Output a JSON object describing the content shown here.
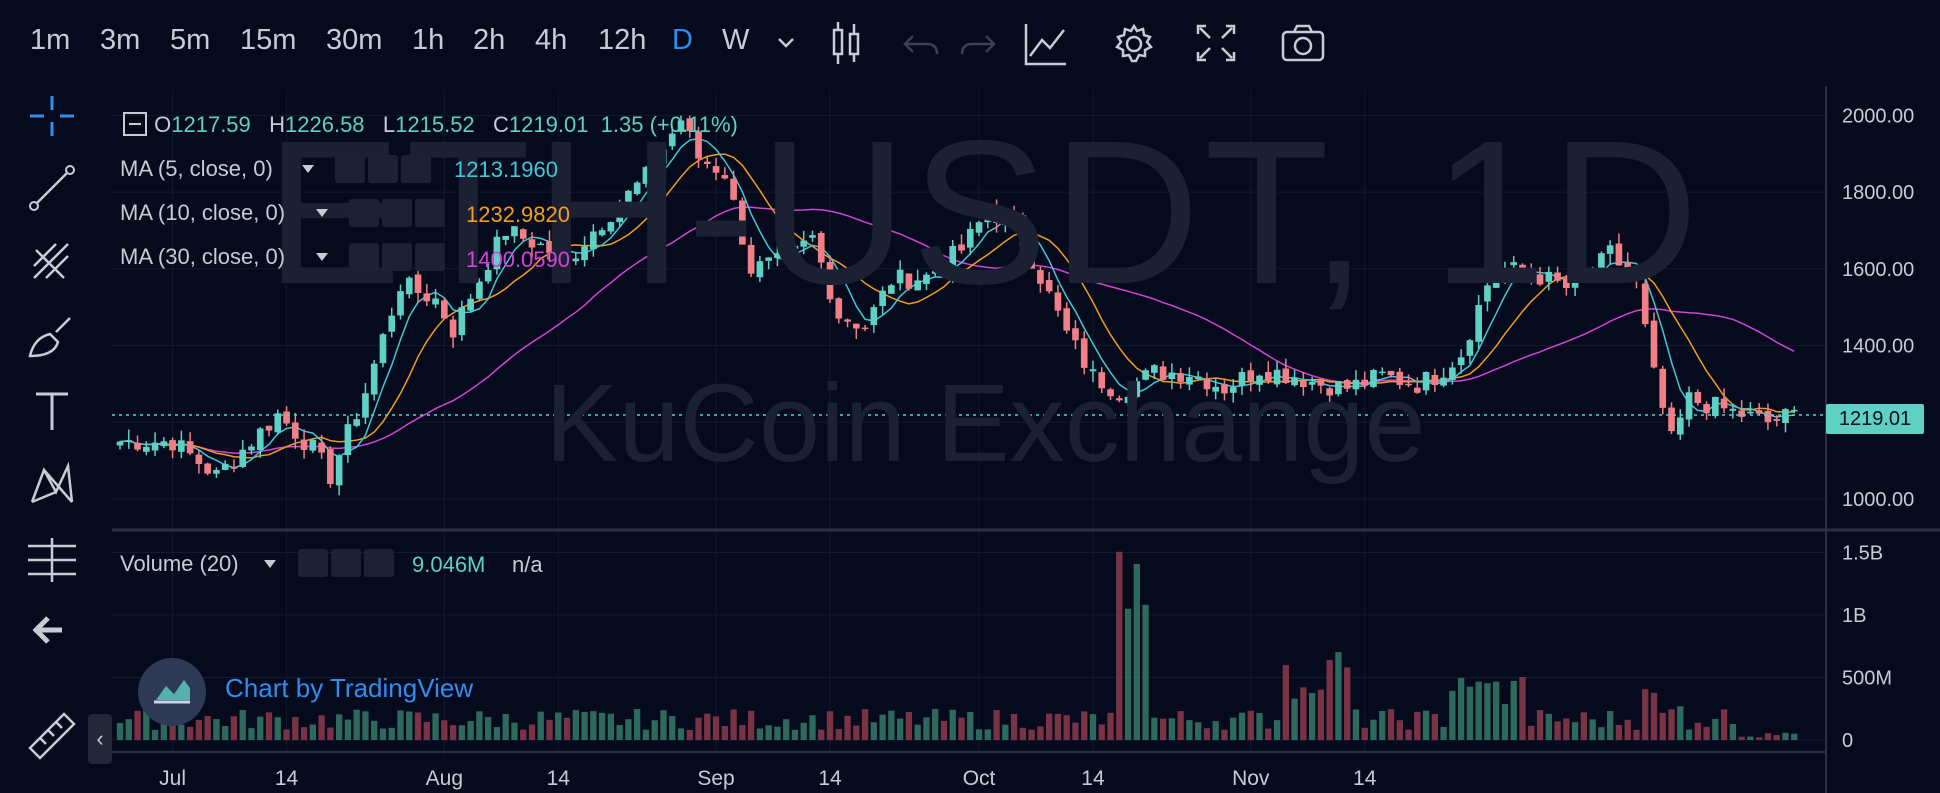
{
  "toolbar": {
    "timeframes": [
      "1m",
      "3m",
      "5m",
      "15m",
      "30m",
      "1h",
      "2h",
      "4h",
      "12h",
      "D",
      "W"
    ],
    "active_timeframe": "D"
  },
  "legend": {
    "o_label": "O",
    "o_value": "1217.59",
    "h_label": "H",
    "h_value": "1226.58",
    "l_label": "L",
    "l_value": "1215.52",
    "c_label": "C",
    "c_value": "1219.01",
    "change": "1.35 (+0.11%)"
  },
  "indicators": [
    {
      "name": "MA (5, close, 0)",
      "value": "1213.1960",
      "color": "#3fc8d8"
    },
    {
      "name": "MA (10, close, 0)",
      "value": "1232.9820",
      "color": "#f39c1f"
    },
    {
      "name": "MA (30, close, 0)",
      "value": "1400.0590",
      "color": "#d442d8"
    }
  ],
  "volume_indicator": {
    "name": "Volume (20)",
    "value": "9.046M",
    "ma": "n/a"
  },
  "watermark": {
    "symbol": "ETH-USDT, 1D",
    "exchange": "KuCoin Exchange"
  },
  "branding": {
    "text": "Chart by TradingView"
  },
  "last_price": "1219.01",
  "colors": {
    "up": "#5ed0c4",
    "down": "#f07f86",
    "bg": "#050a1c",
    "accent": "#2f8ef0"
  },
  "icons": [
    "candles-icon",
    "undo-icon",
    "redo-icon",
    "line-chart-icon",
    "gear-icon",
    "fullscreen-icon",
    "camera-icon",
    "crosshair-icon",
    "trend-line-icon",
    "pitchfork-icon",
    "brush-icon",
    "text-icon",
    "pattern-icon",
    "measure-icon",
    "back-arrow-icon",
    "ruler-icon"
  ],
  "chart_data": {
    "type": "candlestick",
    "symbol": "ETH-USDT",
    "interval": "1D",
    "price_axis": {
      "ticks": [
        "2000.00",
        "1800.00",
        "1600.00",
        "1400.00",
        "1200.00",
        "1000.00"
      ],
      "range": [
        940,
        2040
      ]
    },
    "volume_axis": {
      "ticks": [
        "1.5B",
        "1B",
        "500M",
        "0"
      ],
      "range": [
        0,
        1600000000
      ]
    },
    "x_labels": [
      "Jul",
      "14",
      "Aug",
      "14",
      "Sep",
      "14",
      "Oct",
      "14",
      "Nov",
      "14"
    ],
    "anchor_points": [
      {
        "day": 0,
        "price": 1150
      },
      {
        "day": 6,
        "price": 1150
      },
      {
        "day": 11,
        "price": 1060
      },
      {
        "day": 18,
        "price": 1220
      },
      {
        "day": 22,
        "price": 1130
      },
      {
        "day": 24,
        "price": 1060
      },
      {
        "day": 28,
        "price": 1280
      },
      {
        "day": 32,
        "price": 1560
      },
      {
        "day": 36,
        "price": 1520
      },
      {
        "day": 38,
        "price": 1440
      },
      {
        "day": 42,
        "price": 1620
      },
      {
        "day": 44,
        "price": 1700
      },
      {
        "day": 48,
        "price": 1660
      },
      {
        "day": 51,
        "price": 1620
      },
      {
        "day": 54,
        "price": 1700
      },
      {
        "day": 60,
        "price": 1840
      },
      {
        "day": 64,
        "price": 1990
      },
      {
        "day": 66,
        "price": 1890
      },
      {
        "day": 69,
        "price": 1850
      },
      {
        "day": 72,
        "price": 1600
      },
      {
        "day": 76,
        "price": 1620
      },
      {
        "day": 79,
        "price": 1680
      },
      {
        "day": 82,
        "price": 1480
      },
      {
        "day": 85,
        "price": 1450
      },
      {
        "day": 88,
        "price": 1570
      },
      {
        "day": 92,
        "price": 1580
      },
      {
        "day": 96,
        "price": 1650
      },
      {
        "day": 99,
        "price": 1750
      },
      {
        "day": 102,
        "price": 1720
      },
      {
        "day": 105,
        "price": 1580
      },
      {
        "day": 108,
        "price": 1430
      },
      {
        "day": 111,
        "price": 1320
      },
      {
        "day": 114,
        "price": 1280
      },
      {
        "day": 118,
        "price": 1330
      },
      {
        "day": 122,
        "price": 1330
      },
      {
        "day": 126,
        "price": 1290
      },
      {
        "day": 130,
        "price": 1340
      },
      {
        "day": 134,
        "price": 1320
      },
      {
        "day": 137,
        "price": 1300
      },
      {
        "day": 140,
        "price": 1290
      },
      {
        "day": 144,
        "price": 1320
      },
      {
        "day": 148,
        "price": 1300
      },
      {
        "day": 150,
        "price": 1320
      },
      {
        "day": 153,
        "price": 1380
      },
      {
        "day": 156,
        "price": 1560
      },
      {
        "day": 158,
        "price": 1600
      },
      {
        "day": 162,
        "price": 1580
      },
      {
        "day": 165,
        "price": 1550
      },
      {
        "day": 168,
        "price": 1590
      },
      {
        "day": 170,
        "price": 1640
      },
      {
        "day": 173,
        "price": 1560
      },
      {
        "day": 175,
        "price": 1320
      },
      {
        "day": 177,
        "price": 1150
      },
      {
        "day": 179,
        "price": 1260
      },
      {
        "day": 182,
        "price": 1240
      },
      {
        "day": 185,
        "price": 1220
      },
      {
        "day": 188,
        "price": 1200
      },
      {
        "day": 191,
        "price": 1220
      }
    ],
    "ma_values": {
      "ma5": 1213.196,
      "ma10": 1232.982,
      "ma30": 1400.059
    }
  }
}
